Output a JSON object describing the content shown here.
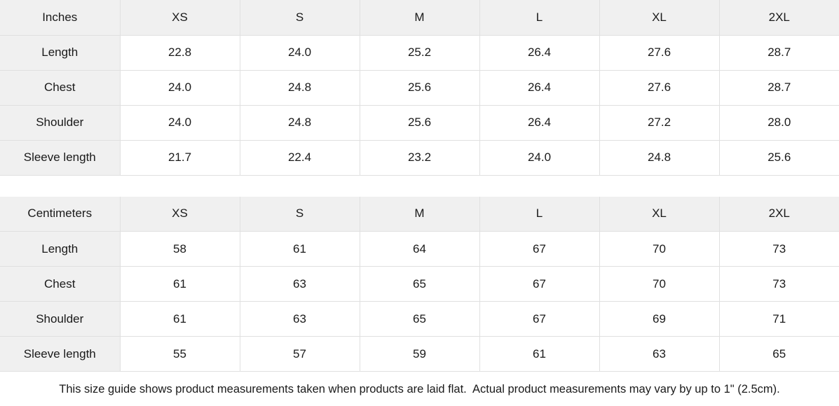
{
  "size_guide": {
    "tables": [
      {
        "unit_label": "Inches",
        "sizes": [
          "XS",
          "S",
          "M",
          "L",
          "XL",
          "2XL"
        ],
        "rows": [
          {
            "label": "Length",
            "values": [
              "22.8",
              "24.0",
              "25.2",
              "26.4",
              "27.6",
              "28.7"
            ]
          },
          {
            "label": "Chest",
            "values": [
              "24.0",
              "24.8",
              "25.6",
              "26.4",
              "27.6",
              "28.7"
            ]
          },
          {
            "label": "Shoulder",
            "values": [
              "24.0",
              "24.8",
              "25.6",
              "26.4",
              "27.2",
              "28.0"
            ]
          },
          {
            "label": "Sleeve length",
            "values": [
              "21.7",
              "22.4",
              "23.2",
              "24.0",
              "24.8",
              "25.6"
            ]
          }
        ]
      },
      {
        "unit_label": "Centimeters",
        "sizes": [
          "XS",
          "S",
          "M",
          "L",
          "XL",
          "2XL"
        ],
        "rows": [
          {
            "label": "Length",
            "values": [
              "58",
              "61",
              "64",
              "67",
              "70",
              "73"
            ]
          },
          {
            "label": "Chest",
            "values": [
              "61",
              "63",
              "65",
              "67",
              "70",
              "73"
            ]
          },
          {
            "label": "Shoulder",
            "values": [
              "61",
              "63",
              "65",
              "67",
              "69",
              "71"
            ]
          },
          {
            "label": "Sleeve length",
            "values": [
              "55",
              "57",
              "59",
              "61",
              "63",
              "65"
            ]
          }
        ]
      }
    ],
    "footnote": "This size guide shows product measurements taken when products are laid flat.  Actual product measurements may vary by up to 1\" (2.5cm).",
    "colors": {
      "header_bg": "#f0f0f0",
      "border": "#e0e0e0",
      "text": "#1a1a1a",
      "background": "#ffffff"
    }
  }
}
